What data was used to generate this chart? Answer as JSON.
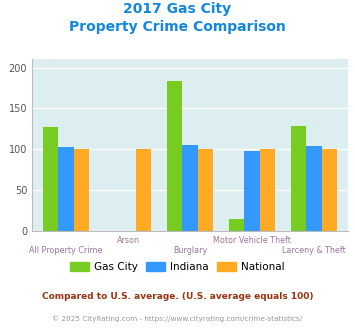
{
  "title_line1": "2017 Gas City",
  "title_line2": "Property Crime Comparison",
  "categories": [
    "All Property Crime",
    "Arson",
    "Burglary",
    "Motor Vehicle Theft",
    "Larceny & Theft"
  ],
  "gas_city": [
    127,
    0,
    183,
    15,
    129
  ],
  "indiana": [
    103,
    0,
    105,
    98,
    104
  ],
  "national": [
    100,
    100,
    100,
    100,
    100
  ],
  "bar_colors": {
    "gas_city": "#77cc22",
    "indiana": "#3399ff",
    "national": "#ffaa22"
  },
  "ylim": [
    0,
    210
  ],
  "yticks": [
    0,
    50,
    100,
    150,
    200
  ],
  "bg_color": "#ddeef0",
  "grid_color": "#ffffff",
  "title_color": "#1188dd",
  "xlabel_color": "#997799",
  "footer_note": "Compared to U.S. average. (U.S. average equals 100)",
  "footer_credit": "© 2025 CityRating.com - https://www.cityrating.com/crime-statistics/",
  "footer_note_color": "#993311",
  "footer_credit_color": "#999999",
  "legend_labels": [
    "Gas City",
    "Indiana",
    "National"
  ],
  "stagger_upper": [
    false,
    true,
    false,
    true,
    false
  ]
}
